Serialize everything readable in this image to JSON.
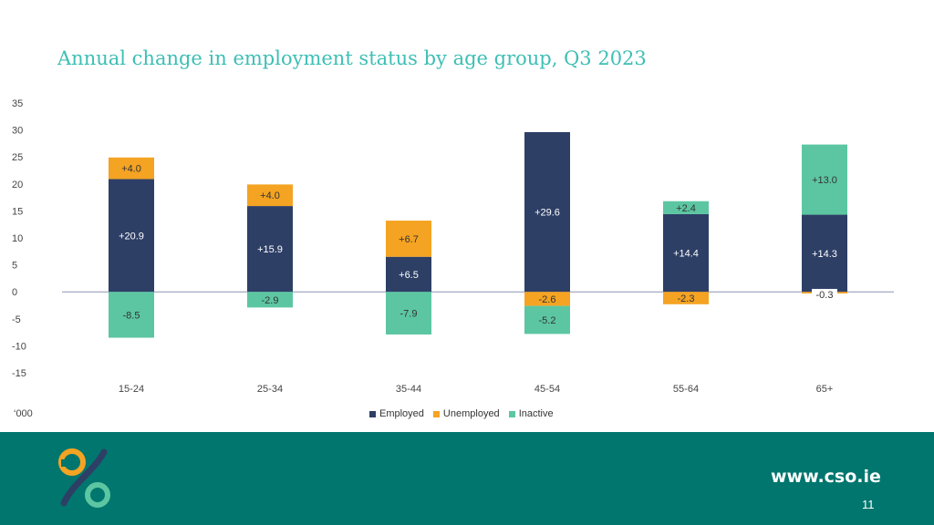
{
  "title": "Annual change in employment status by age group, Q3 2023",
  "unit_label": "‘000",
  "footer": {
    "site": "www.cso.ie",
    "page_number": "11",
    "logo_icon": "cso-logo-icon"
  },
  "colors": {
    "Employed": "#2e3f66",
    "Unemployed": "#f4a322",
    "Inactive": "#5cc6a2"
  },
  "chart_data": {
    "type": "bar",
    "stacked": true,
    "title": "Annual change in employment status by age group, Q3 2023",
    "categories": [
      "15-24",
      "25-34",
      "35-44",
      "45-54",
      "55-64",
      "65+"
    ],
    "series": [
      {
        "name": "Employed",
        "values": [
          20.9,
          15.9,
          6.5,
          29.6,
          14.4,
          14.3
        ]
      },
      {
        "name": "Unemployed",
        "values": [
          4.0,
          4.0,
          6.7,
          -2.6,
          -2.3,
          -0.3
        ]
      },
      {
        "name": "Inactive",
        "values": [
          -8.5,
          -2.9,
          -7.9,
          -5.2,
          2.4,
          13.0
        ]
      }
    ],
    "data_labels": [
      [
        "+20.9",
        "+15.9",
        "+6.5",
        "+29.6",
        "+14.4",
        "+14.3"
      ],
      [
        "+4.0",
        "+4.0",
        "+6.7",
        "-2.6",
        "-2.3",
        "-0.3"
      ],
      [
        "-8.5",
        "-2.9",
        "-7.9",
        "-5.2",
        "+2.4",
        "+13.0"
      ]
    ],
    "ylim": [
      -15,
      35
    ],
    "yticks": [
      35,
      30,
      25,
      20,
      15,
      10,
      5,
      0,
      -5,
      -10,
      -15
    ],
    "grid": false,
    "legend": "bottom"
  }
}
